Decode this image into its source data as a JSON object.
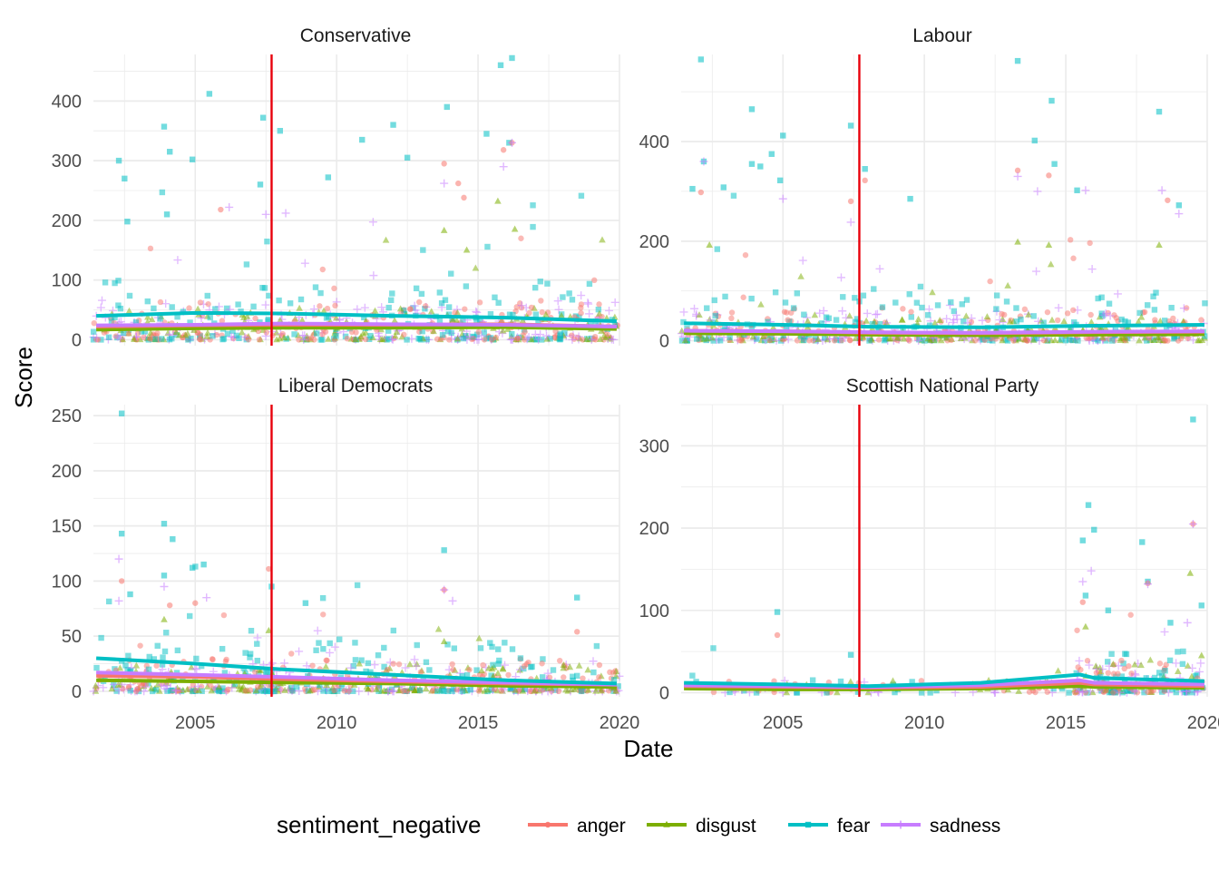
{
  "chart_data": {
    "type": "scatter",
    "xlabel": "Date",
    "ylabel": "Score",
    "x_ticks": [
      2005,
      2010,
      2015,
      2020
    ],
    "x_range": [
      2001.4,
      2020.0
    ],
    "vertical_line": {
      "x": 2007.7,
      "color": "#e8000b"
    },
    "legend": {
      "title": "sentiment_negative",
      "placement": "bottom",
      "entries": [
        {
          "name": "anger",
          "color": "#f8766d",
          "shape": "circle"
        },
        {
          "name": "disgust",
          "color": "#7cae00",
          "shape": "triangle"
        },
        {
          "name": "fear",
          "color": "#00bfc4",
          "shape": "square"
        },
        {
          "name": "sadness",
          "color": "#c77cff",
          "shape": "cross"
        }
      ]
    },
    "panels": [
      {
        "title": "Conservative",
        "ylim": [
          -10,
          478
        ],
        "y_ticks": [
          0,
          100,
          200,
          300,
          400
        ],
        "trend": {
          "x": [
            2001.5,
            2005,
            2008,
            2012,
            2016,
            2019.9
          ],
          "anger": [
            22,
            24,
            25,
            25,
            26,
            22
          ],
          "disgust": [
            17,
            19,
            20,
            20,
            21,
            18
          ],
          "fear": [
            40,
            45,
            44,
            40,
            37,
            31
          ],
          "sadness": [
            24,
            25,
            27,
            26,
            25,
            22
          ]
        },
        "highlights": [
          {
            "s": "fear",
            "x": 2002.3,
            "y": 300
          },
          {
            "s": "fear",
            "x": 2002.5,
            "y": 270
          },
          {
            "s": "fear",
            "x": 2003.9,
            "y": 357
          },
          {
            "s": "fear",
            "x": 2004.1,
            "y": 315
          },
          {
            "s": "fear",
            "x": 2004.9,
            "y": 302
          },
          {
            "s": "fear",
            "x": 2005.5,
            "y": 412
          },
          {
            "s": "fear",
            "x": 2007.4,
            "y": 372
          },
          {
            "s": "fear",
            "x": 2008.0,
            "y": 350
          },
          {
            "s": "fear",
            "x": 2009.7,
            "y": 272
          },
          {
            "s": "fear",
            "x": 2010.9,
            "y": 335
          },
          {
            "s": "fear",
            "x": 2012.0,
            "y": 360
          },
          {
            "s": "fear",
            "x": 2012.5,
            "y": 305
          },
          {
            "s": "fear",
            "x": 2013.9,
            "y": 390
          },
          {
            "s": "fear",
            "x": 2015.3,
            "y": 345
          },
          {
            "s": "fear",
            "x": 2015.8,
            "y": 460
          },
          {
            "s": "fear",
            "x": 2016.2,
            "y": 472
          },
          {
            "s": "fear",
            "x": 2016.1,
            "y": 330
          },
          {
            "s": "fear",
            "x": 2004.0,
            "y": 210
          },
          {
            "s": "fear",
            "x": 2002.6,
            "y": 198
          },
          {
            "s": "fear",
            "x": 2007.3,
            "y": 260
          },
          {
            "s": "anger",
            "x": 2013.8,
            "y": 295
          },
          {
            "s": "anger",
            "x": 2016.2,
            "y": 330
          },
          {
            "s": "anger",
            "x": 2015.9,
            "y": 318
          },
          {
            "s": "anger",
            "x": 2014.5,
            "y": 238
          },
          {
            "s": "anger",
            "x": 2005.9,
            "y": 218
          },
          {
            "s": "anger",
            "x": 2014.3,
            "y": 262
          },
          {
            "s": "sadness",
            "x": 2015.9,
            "y": 290
          },
          {
            "s": "sadness",
            "x": 2016.2,
            "y": 330
          },
          {
            "s": "sadness",
            "x": 2013.8,
            "y": 262
          },
          {
            "s": "sadness",
            "x": 2006.2,
            "y": 222
          },
          {
            "s": "sadness",
            "x": 2007.5,
            "y": 210
          },
          {
            "s": "sadness",
            "x": 2008.2,
            "y": 212
          },
          {
            "s": "disgust",
            "x": 2015.7,
            "y": 232
          },
          {
            "s": "disgust",
            "x": 2016.3,
            "y": 185
          },
          {
            "s": "disgust",
            "x": 2013.8,
            "y": 183
          },
          {
            "s": "disgust",
            "x": 2014.6,
            "y": 150
          }
        ]
      },
      {
        "title": "Labour",
        "ylim": [
          -10,
          575
        ],
        "y_ticks": [
          0,
          200,
          400
        ],
        "trend": {
          "x": [
            2001.5,
            2005,
            2008,
            2012,
            2016,
            2019.9
          ],
          "anger": [
            20,
            19,
            16,
            15,
            17,
            18
          ],
          "disgust": [
            15,
            14,
            12,
            11,
            12,
            13
          ],
          "fear": [
            35,
            32,
            28,
            27,
            30,
            32
          ],
          "sadness": [
            20,
            19,
            17,
            16,
            18,
            19
          ]
        },
        "highlights": [
          {
            "s": "fear",
            "x": 2002.1,
            "y": 565
          },
          {
            "s": "fear",
            "x": 2013.3,
            "y": 562
          },
          {
            "s": "fear",
            "x": 2003.9,
            "y": 465
          },
          {
            "s": "fear",
            "x": 2014.5,
            "y": 482
          },
          {
            "s": "fear",
            "x": 2018.3,
            "y": 460
          },
          {
            "s": "fear",
            "x": 2007.4,
            "y": 432
          },
          {
            "s": "fear",
            "x": 2005.0,
            "y": 412
          },
          {
            "s": "fear",
            "x": 2013.9,
            "y": 402
          },
          {
            "s": "fear",
            "x": 2004.6,
            "y": 375
          },
          {
            "s": "fear",
            "x": 2002.2,
            "y": 360
          },
          {
            "s": "fear",
            "x": 2003.9,
            "y": 355
          },
          {
            "s": "fear",
            "x": 2004.2,
            "y": 350
          },
          {
            "s": "fear",
            "x": 2014.6,
            "y": 355
          },
          {
            "s": "fear",
            "x": 2007.9,
            "y": 345
          },
          {
            "s": "fear",
            "x": 2004.9,
            "y": 322
          },
          {
            "s": "fear",
            "x": 2001.8,
            "y": 305
          },
          {
            "s": "fear",
            "x": 2002.9,
            "y": 308
          },
          {
            "s": "fear",
            "x": 2015.4,
            "y": 302
          },
          {
            "s": "fear",
            "x": 2009.5,
            "y": 285
          },
          {
            "s": "fear",
            "x": 2019.0,
            "y": 272
          },
          {
            "s": "anger",
            "x": 2013.3,
            "y": 342
          },
          {
            "s": "anger",
            "x": 2014.4,
            "y": 332
          },
          {
            "s": "anger",
            "x": 2002.1,
            "y": 298
          },
          {
            "s": "anger",
            "x": 2007.4,
            "y": 280
          },
          {
            "s": "anger",
            "x": 2007.9,
            "y": 322
          },
          {
            "s": "anger",
            "x": 2018.6,
            "y": 282
          },
          {
            "s": "sadness",
            "x": 2002.2,
            "y": 360
          },
          {
            "s": "sadness",
            "x": 2013.3,
            "y": 330
          },
          {
            "s": "sadness",
            "x": 2014.0,
            "y": 300
          },
          {
            "s": "sadness",
            "x": 2015.7,
            "y": 302
          },
          {
            "s": "sadness",
            "x": 2018.4,
            "y": 302
          },
          {
            "s": "sadness",
            "x": 2019.0,
            "y": 255
          },
          {
            "s": "sadness",
            "x": 2005.0,
            "y": 285
          },
          {
            "s": "sadness",
            "x": 2007.4,
            "y": 238
          },
          {
            "s": "disgust",
            "x": 2013.3,
            "y": 198
          },
          {
            "s": "disgust",
            "x": 2014.4,
            "y": 192
          },
          {
            "s": "disgust",
            "x": 2018.3,
            "y": 192
          },
          {
            "s": "disgust",
            "x": 2002.4,
            "y": 192
          }
        ]
      },
      {
        "title": "Liberal Democrats",
        "ylim": [
          -5,
          260
        ],
        "y_ticks": [
          0,
          50,
          100,
          150,
          200,
          250
        ],
        "trend": {
          "x": [
            2001.5,
            2005,
            2008,
            2012,
            2016,
            2019.9
          ],
          "anger": [
            14,
            13,
            11,
            9,
            7,
            6
          ],
          "disgust": [
            10,
            9,
            8,
            7,
            5,
            4
          ],
          "fear": [
            30,
            25,
            20,
            15,
            10,
            7
          ],
          "sadness": [
            17,
            15,
            13,
            10,
            8,
            6
          ]
        },
        "highlights": [
          {
            "s": "fear",
            "x": 2002.4,
            "y": 252
          },
          {
            "s": "fear",
            "x": 2003.9,
            "y": 152
          },
          {
            "s": "fear",
            "x": 2002.4,
            "y": 143
          },
          {
            "s": "fear",
            "x": 2004.2,
            "y": 138
          },
          {
            "s": "fear",
            "x": 2013.8,
            "y": 128
          },
          {
            "s": "fear",
            "x": 2004.9,
            "y": 112
          },
          {
            "s": "fear",
            "x": 2005.3,
            "y": 115
          },
          {
            "s": "fear",
            "x": 2007.7,
            "y": 95
          },
          {
            "s": "fear",
            "x": 2018.5,
            "y": 85
          },
          {
            "s": "fear",
            "x": 2002.7,
            "y": 88
          },
          {
            "s": "fear",
            "x": 2003.9,
            "y": 105
          },
          {
            "s": "fear",
            "x": 2008.9,
            "y": 80
          },
          {
            "s": "anger",
            "x": 2007.6,
            "y": 111
          },
          {
            "s": "anger",
            "x": 2002.4,
            "y": 100
          },
          {
            "s": "anger",
            "x": 2013.8,
            "y": 92
          },
          {
            "s": "anger",
            "x": 2018.5,
            "y": 54
          },
          {
            "s": "anger",
            "x": 2005.0,
            "y": 80
          },
          {
            "s": "anger",
            "x": 2004.1,
            "y": 78
          },
          {
            "s": "sadness",
            "x": 2002.3,
            "y": 120
          },
          {
            "s": "sadness",
            "x": 2013.8,
            "y": 92
          },
          {
            "s": "sadness",
            "x": 2014.1,
            "y": 82
          },
          {
            "s": "sadness",
            "x": 2005.4,
            "y": 85
          },
          {
            "s": "sadness",
            "x": 2002.3,
            "y": 82
          },
          {
            "s": "sadness",
            "x": 2003.9,
            "y": 95
          },
          {
            "s": "disgust",
            "x": 2003.9,
            "y": 65
          },
          {
            "s": "disgust",
            "x": 2007.6,
            "y": 55
          },
          {
            "s": "disgust",
            "x": 2013.8,
            "y": 45
          }
        ]
      },
      {
        "title": "Scottish National Party",
        "ylim": [
          -5,
          350
        ],
        "y_ticks": [
          0,
          100,
          200,
          300
        ],
        "trend": {
          "x": [
            2001.5,
            2005,
            2008,
            2012,
            2015.5,
            2016,
            2019.9
          ],
          "anger": [
            8,
            7,
            6,
            7,
            12,
            10,
            8
          ],
          "disgust": [
            5,
            4,
            4,
            5,
            8,
            7,
            6
          ],
          "fear": [
            12,
            10,
            8,
            12,
            22,
            18,
            14
          ],
          "sadness": [
            9,
            8,
            7,
            9,
            15,
            12,
            10
          ]
        },
        "highlights": [
          {
            "s": "fear",
            "x": 2019.5,
            "y": 332
          },
          {
            "s": "fear",
            "x": 2015.8,
            "y": 228
          },
          {
            "s": "fear",
            "x": 2016.0,
            "y": 198
          },
          {
            "s": "fear",
            "x": 2015.6,
            "y": 185
          },
          {
            "s": "fear",
            "x": 2017.7,
            "y": 183
          },
          {
            "s": "fear",
            "x": 2016.5,
            "y": 100
          },
          {
            "s": "fear",
            "x": 2004.8,
            "y": 98
          },
          {
            "s": "fear",
            "x": 2019.8,
            "y": 106
          },
          {
            "s": "fear",
            "x": 2015.7,
            "y": 118
          },
          {
            "s": "fear",
            "x": 2017.9,
            "y": 135
          },
          {
            "s": "fear",
            "x": 2018.7,
            "y": 85
          },
          {
            "s": "fear",
            "x": 2007.4,
            "y": 46
          },
          {
            "s": "anger",
            "x": 2019.5,
            "y": 205
          },
          {
            "s": "anger",
            "x": 2017.9,
            "y": 133
          },
          {
            "s": "anger",
            "x": 2004.8,
            "y": 70
          },
          {
            "s": "anger",
            "x": 2015.6,
            "y": 110
          },
          {
            "s": "sadness",
            "x": 2019.5,
            "y": 205
          },
          {
            "s": "sadness",
            "x": 2015.9,
            "y": 148
          },
          {
            "s": "sadness",
            "x": 2015.6,
            "y": 135
          },
          {
            "s": "sadness",
            "x": 2017.9,
            "y": 132
          },
          {
            "s": "sadness",
            "x": 2019.3,
            "y": 85
          },
          {
            "s": "disgust",
            "x": 2019.4,
            "y": 145
          },
          {
            "s": "disgust",
            "x": 2015.7,
            "y": 80
          },
          {
            "s": "disgust",
            "x": 2019.8,
            "y": 45
          }
        ]
      }
    ]
  }
}
